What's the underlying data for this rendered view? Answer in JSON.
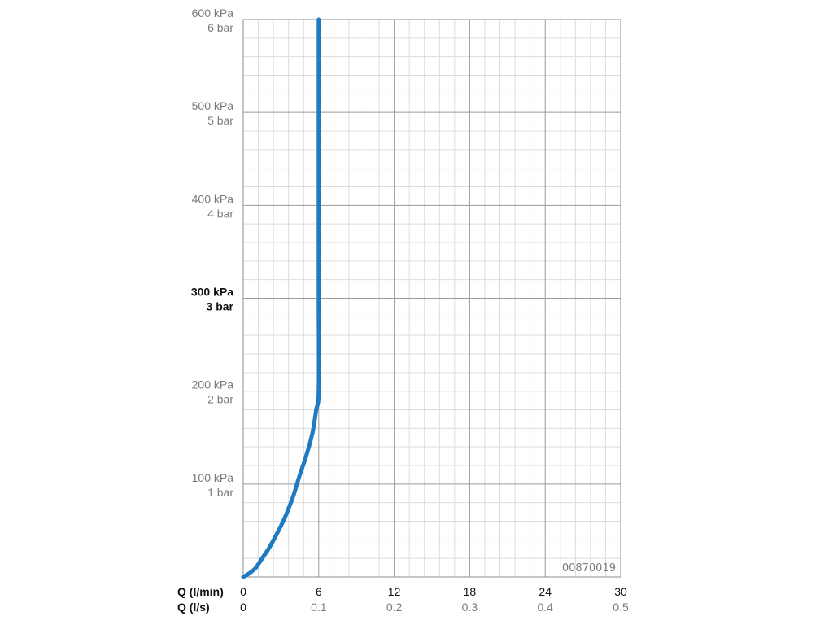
{
  "chart_data": {
    "type": "line",
    "yaxis": {
      "range": [
        0,
        600
      ],
      "ticks": [
        {
          "value": 100,
          "line1": "100 kPa",
          "line2": "1 bar",
          "bold": false
        },
        {
          "value": 200,
          "line1": "200 kPa",
          "line2": "2 bar",
          "bold": false
        },
        {
          "value": 300,
          "line1": "300 kPa",
          "line2": "3 bar",
          "bold": true
        },
        {
          "value": 400,
          "line1": "400 kPa",
          "line2": "4 bar",
          "bold": false
        },
        {
          "value": 500,
          "line1": "500 kPa",
          "line2": "5 bar",
          "bold": false
        },
        {
          "value": 600,
          "line1": "600 kPa",
          "line2": "6 bar",
          "bold": false
        }
      ]
    },
    "xaxis": {
      "range": [
        0,
        30
      ],
      "primary_label": "Q (l/min)",
      "secondary_label": "Q (l/s)",
      "ticks": [
        {
          "value": 0,
          "primary": "0",
          "secondary": "0"
        },
        {
          "value": 6,
          "primary": "6",
          "secondary": "0.1"
        },
        {
          "value": 12,
          "primary": "12",
          "secondary": "0.2"
        },
        {
          "value": 18,
          "primary": "18",
          "secondary": "0.3"
        },
        {
          "value": 24,
          "primary": "24",
          "secondary": "0.4"
        },
        {
          "value": 30,
          "primary": "30",
          "secondary": "0.5"
        }
      ]
    },
    "grid": true,
    "series": [
      {
        "color": "#1f7bc1",
        "points": [
          [
            0,
            0
          ],
          [
            0.5,
            4
          ],
          [
            1.0,
            10
          ],
          [
            1.5,
            20
          ],
          [
            2.0,
            30
          ],
          [
            2.5,
            42
          ],
          [
            3.0,
            55
          ],
          [
            3.5,
            70
          ],
          [
            4.0,
            88
          ],
          [
            4.5,
            110
          ],
          [
            5.0,
            130
          ],
          [
            5.5,
            155
          ],
          [
            5.8,
            180
          ],
          [
            6.0,
            200
          ],
          [
            6.0,
            300
          ],
          [
            6.0,
            400
          ],
          [
            6.0,
            500
          ],
          [
            6.0,
            600
          ]
        ]
      }
    ],
    "annotation": "00870019"
  }
}
